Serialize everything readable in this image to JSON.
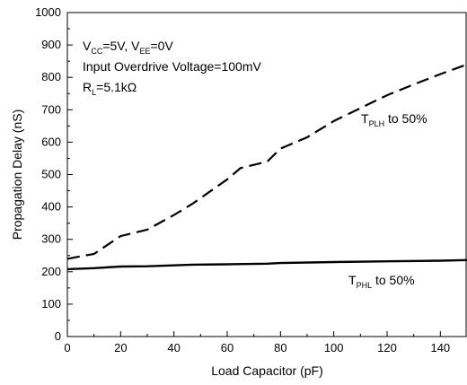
{
  "chart_data": {
    "type": "line",
    "title": "",
    "xlabel": "Load Capacitor (pF)",
    "ylabel": "Propagation Delay (nS)",
    "xlim": [
      0,
      150
    ],
    "ylim": [
      0,
      1000
    ],
    "x_ticks": [
      0,
      20,
      40,
      60,
      80,
      100,
      120,
      140
    ],
    "y_ticks": [
      0,
      100,
      200,
      300,
      400,
      500,
      600,
      700,
      800,
      900,
      1000
    ],
    "grid": false,
    "annotation_lines": [
      "V_CC=5V, V_EE=0V",
      "Input Overdrive Voltage=100mV",
      "R_L=5.1kΩ"
    ],
    "series": [
      {
        "name": "T_PLH to 50%",
        "style": "dashed",
        "color": "#000000",
        "x": [
          0,
          10,
          20,
          30,
          40,
          47,
          60,
          65,
          75,
          80,
          90,
          100,
          110,
          120,
          130,
          140,
          150
        ],
        "y": [
          240,
          255,
          310,
          330,
          375,
          410,
          485,
          520,
          540,
          580,
          615,
          665,
          705,
          745,
          778,
          810,
          840
        ]
      },
      {
        "name": "T_PHL to 50%",
        "style": "solid",
        "color": "#000000",
        "x": [
          0,
          10,
          20,
          30,
          47,
          60,
          75,
          80,
          100,
          120,
          140,
          150
        ],
        "y": [
          208,
          211,
          216,
          217,
          222,
          223,
          225,
          227,
          230,
          232,
          234,
          236
        ]
      }
    ]
  }
}
